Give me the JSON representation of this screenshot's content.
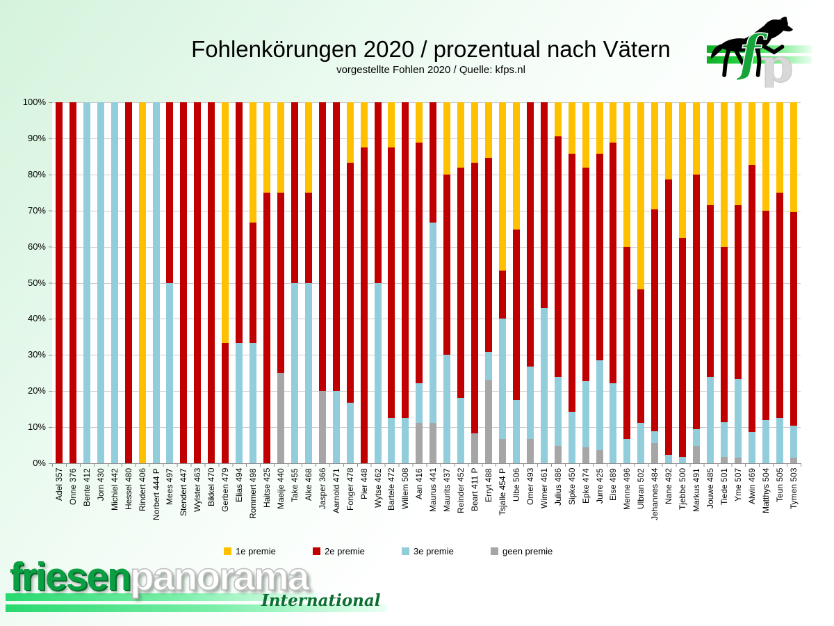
{
  "slide": {
    "title": "Fohlenkörungen 2020 / prozentual nach Vätern",
    "subtitle": "vorgestellte Fohlen 2020 / Quelle: kfps.nl"
  },
  "colors": {
    "premie1": "#FFC000",
    "premie2": "#C00000",
    "premie3": "#92CDDC",
    "geen": "#A6A6A6",
    "gridline": "#C9C9C9",
    "axis": "#8F8F8F",
    "logo_green": "#0A9F42",
    "stripe_green": "#27D96E"
  },
  "y_axis": {
    "ticks_top_to_bottom": [
      "100%",
      "90%",
      "80%",
      "70%",
      "60%",
      "50%",
      "40%",
      "30%",
      "20%",
      "10%",
      "0%"
    ]
  },
  "legend": {
    "position": "bottom",
    "items": [
      {
        "label": "1e premie",
        "color": "#FFC000"
      },
      {
        "label": "2e premie",
        "color": "#C00000"
      },
      {
        "label": "3e premie",
        "color": "#92CDDC"
      },
      {
        "label": "geen premie",
        "color": "#A6A6A6"
      }
    ]
  },
  "chart_data": {
    "type": "bar",
    "stacked": true,
    "title": "Fohlenkörungen 2020 / prozentual nach Vätern",
    "subtitle": "vorgestellte Fohlen 2020 / Quelle: kfps.nl",
    "xlabel": "",
    "ylabel": "",
    "ylim": [
      0,
      100
    ],
    "grid": true,
    "legend_position": "bottom",
    "units": "percent",
    "stack_order_bottom_to_top": [
      "geen premie",
      "3e premie",
      "2e premie",
      "1e premie"
    ],
    "categories": [
      "Adel 357",
      "Onne 376",
      "Bente 412",
      "Jorn 430",
      "Michiel 442",
      "Hessel 480",
      "Rindert 406",
      "Norbert 444 P",
      "Mees 497",
      "Stendert 447",
      "Wylster 463",
      "Bikkel 470",
      "Gerben 479",
      "Elias 494",
      "Rommert 498",
      "Haitse 425",
      "Maeije 440",
      "Take 455",
      "Alke 468",
      "Jasper 366",
      "Aarnold 471",
      "Fonger 478",
      "Pier 448",
      "Wytse 462",
      "Bartele 472",
      "Willem 508",
      "Aan 416",
      "Maurus 441",
      "Maurits 437",
      "Reinder 452",
      "Beart 411 P",
      "Erryt 488",
      "Tsjalle 454 P",
      "Ulbe 506",
      "Omer 493",
      "Wimer 461",
      "Julius 486",
      "Sipke 450",
      "Epke 474",
      "Jurre 425",
      "Eise 489",
      "Menne 496",
      "Ulbran 502",
      "Jehannes 484",
      "Nane 492",
      "Tjebbe 500",
      "Markus 491",
      "Jouwe 485",
      "Tiede 501",
      "Yme 507",
      "Alwin 469",
      "Matthys 504",
      "Teun 505",
      "Tymen 503"
    ],
    "series": [
      {
        "name": "1e premie",
        "color": "#FFC000",
        "values": [
          0,
          0,
          0,
          0,
          0,
          0,
          100,
          0,
          0,
          0,
          0,
          0,
          66.7,
          0,
          33.3,
          25,
          25,
          0,
          25,
          0,
          0,
          16.7,
          12.5,
          0,
          12.5,
          0,
          11.1,
          0,
          20,
          18.2,
          16.7,
          15.4,
          46.7,
          35.3,
          0,
          0,
          9.5,
          14.3,
          18.2,
          14.3,
          11.1,
          40,
          51.9,
          29.6,
          21.4,
          37.5,
          20,
          28.6,
          40,
          28.6,
          17.4,
          30,
          25,
          30.4
        ]
      },
      {
        "name": "2e premie",
        "color": "#C00000",
        "values": [
          100,
          100,
          0,
          0,
          0,
          100,
          0,
          0,
          50,
          100,
          100,
          100,
          33.3,
          66.7,
          33.4,
          75,
          50,
          50,
          25,
          80,
          80,
          66.6,
          87.5,
          50,
          75,
          87.5,
          66.7,
          33.3,
          50,
          63.6,
          75,
          53.8,
          13.3,
          47.1,
          73.3,
          57.1,
          66.7,
          71.4,
          59.1,
          57.1,
          66.7,
          53.3,
          37,
          61.5,
          76.2,
          60.7,
          70.5,
          47.6,
          48.7,
          48,
          73.9,
          58,
          62.5,
          59.2
        ]
      },
      {
        "name": "3e premie",
        "color": "#92CDDC",
        "values": [
          0,
          0,
          100,
          100,
          100,
          0,
          0,
          100,
          50,
          0,
          0,
          0,
          0,
          33.3,
          33.3,
          0,
          0,
          50,
          50,
          0,
          20,
          16.7,
          0,
          50,
          12.5,
          12.5,
          11.1,
          55.6,
          30,
          18.2,
          0,
          7.7,
          33.3,
          17.6,
          20,
          42.9,
          19,
          14.3,
          18.2,
          25,
          22.2,
          6.7,
          11.1,
          3.3,
          2.4,
          1.8,
          4.7,
          23.8,
          9.6,
          21.9,
          8.7,
          12,
          12.5,
          8.9
        ]
      },
      {
        "name": "geen premie",
        "color": "#A6A6A6",
        "values": [
          0,
          0,
          0,
          0,
          0,
          0,
          0,
          0,
          0,
          0,
          0,
          0,
          0,
          0,
          0,
          0,
          25,
          0,
          0,
          20,
          0,
          0,
          0,
          0,
          0,
          0,
          11.1,
          11.1,
          0,
          0,
          8.3,
          23.1,
          6.7,
          0,
          6.7,
          0,
          4.8,
          0,
          4.5,
          3.6,
          0,
          0,
          0,
          5.6,
          0,
          0,
          4.8,
          0,
          1.7,
          1.5,
          0,
          0,
          0,
          1.5
        ]
      }
    ]
  },
  "logos": {
    "horse": {
      "letter_f": "f",
      "letter_p": "p"
    },
    "footer": {
      "word1": "friesen",
      "word2": "panorama",
      "tagline": "International"
    }
  }
}
